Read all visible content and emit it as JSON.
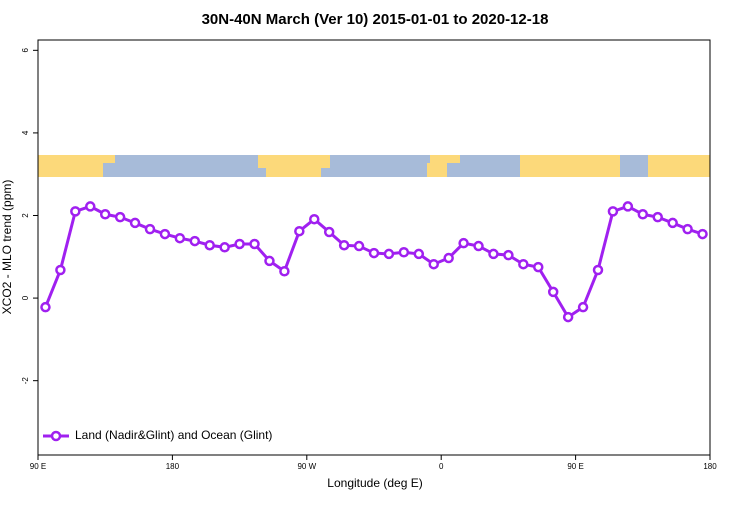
{
  "chart_data": {
    "type": "line",
    "title": "30N-40N March (Ver 10)   2015-01-01 to 2020-12-18",
    "x_label": "Longitude (deg E)",
    "y_label": "XCO2 - MLO trend (ppm)",
    "x": [
      95,
      105,
      115,
      125,
      135,
      145,
      155,
      165,
      175,
      185,
      195,
      205,
      215,
      225,
      235,
      245,
      255,
      265,
      275,
      285,
      295,
      305,
      315,
      325,
      335,
      345,
      355,
      365,
      375,
      385,
      395,
      405,
      415,
      425,
      435,
      445,
      455,
      465,
      475,
      485,
      495,
      505,
      515,
      525,
      535
    ],
    "series": [
      {
        "name": "Land (Nadir&Glint) and Ocean (Glint)",
        "color": "#a020f0",
        "values": [
          -0.22,
          0.68,
          2.1,
          2.22,
          2.03,
          1.96,
          1.82,
          1.67,
          1.55,
          1.45,
          1.38,
          1.28,
          1.23,
          1.31,
          1.31,
          0.9,
          0.65,
          1.62,
          1.91,
          1.6,
          1.28,
          1.26,
          1.09,
          1.07,
          1.11,
          1.07,
          0.82,
          0.97,
          1.33,
          1.26,
          1.07,
          1.04,
          0.82,
          0.75,
          0.15,
          -0.46,
          -0.22,
          0.68,
          2.1,
          2.22,
          2.03,
          1.96,
          1.82,
          1.67,
          1.55
        ]
      }
    ],
    "xlim": [
      90,
      540
    ],
    "xticks": [
      {
        "value": 90,
        "label": "90 E"
      },
      180,
      {
        "value": 270,
        "label": "90 W"
      },
      {
        "value": 360,
        "label": "0"
      },
      {
        "value": 450,
        "label": "90 E"
      },
      {
        "value": 540,
        "label": "180"
      }
    ],
    "ylim": [
      -3.8,
      6.25
    ],
    "yticks": [
      6,
      4,
      2,
      0,
      -2
    ],
    "legend": "bottom-left"
  }
}
